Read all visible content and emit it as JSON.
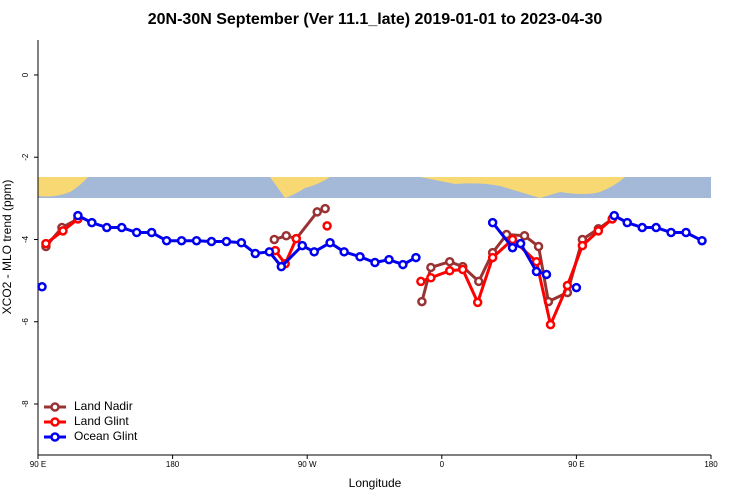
{
  "chart_data": {
    "type": "line",
    "title": "20N-30N September (Ver 11.1_late)   2019-01-01 to 2023-04-30",
    "x_label": "Longitude",
    "y_label": "XCO2 - MLO trend (ppm)",
    "xlim": [
      90,
      540
    ],
    "ylim": [
      -9.24,
      0.85
    ],
    "xticks": [
      {
        "value": 90,
        "label": "90 E"
      },
      180,
      {
        "value": 270,
        "label": "90 W"
      },
      {
        "value": 360,
        "label": "0"
      },
      {
        "value": 450,
        "label": "90 E"
      },
      {
        "value": 540,
        "label": "180"
      }
    ],
    "yticks": [
      -8,
      -6,
      -4,
      -2,
      0
    ],
    "legend": "bottom-left",
    "series": [
      {
        "name": "Land Nadir",
        "color": "#993333",
        "x": [
          95.3,
          106,
          116.7,
          180,
          248,
          256,
          262.7,
          276.7,
          282,
          300,
          346.7,
          352.7,
          365.3,
          374,
          384.7,
          394,
          403.3,
          415.3,
          424.7,
          431.3,
          444,
          454,
          464.7,
          474
        ],
        "values": [
          -4.17,
          -3.71,
          -3.5,
          null,
          -4.0,
          -3.91,
          -3.98,
          -3.33,
          -3.25,
          null,
          -5.51,
          -4.68,
          -4.54,
          -4.66,
          -5.02,
          -4.32,
          -3.88,
          -3.91,
          -4.17,
          -5.51,
          -5.29,
          -4.0,
          -3.74,
          -3.5
        ]
      },
      {
        "name": "Land Glint",
        "color": "#ff0000",
        "x": [
          95.3,
          106.7,
          116.7,
          180,
          248.7,
          255.3,
          262.7,
          270,
          283.3,
          300,
          346,
          352.7,
          365.3,
          374,
          384,
          394,
          407.3,
          423.3,
          432.7,
          444,
          454,
          464.7,
          474
        ],
        "values": [
          -4.1,
          -3.79,
          -3.5,
          null,
          -4.27,
          -4.59,
          -3.98,
          null,
          -3.67,
          null,
          -5.02,
          -4.93,
          -4.76,
          -4.73,
          -5.53,
          -4.44,
          -4.0,
          -4.54,
          -6.07,
          -5.12,
          -4.15,
          -3.79,
          -3.5
        ]
      },
      {
        "name": "Ocean Glint",
        "color": "#0000ee",
        "x": [
          92.7,
          100,
          116.7,
          126,
          136,
          146,
          156,
          166,
          176,
          186,
          196,
          206,
          216,
          226,
          235.3,
          244.7,
          252.7,
          266.7,
          274.7,
          285.3,
          294.7,
          305.3,
          315.3,
          324.7,
          334,
          342.7,
          370,
          394,
          407.3,
          412.7,
          423.3,
          430,
          440,
          450,
          460,
          475.3,
          484,
          494,
          503.3,
          513.3,
          523.3,
          534
        ],
        "values": [
          -5.15,
          null,
          -3.42,
          -3.59,
          -3.71,
          -3.71,
          -3.83,
          -3.83,
          -4.03,
          -4.03,
          -4.03,
          -4.05,
          -4.05,
          -4.08,
          -4.34,
          -4.3,
          -4.66,
          -4.15,
          -4.3,
          -4.08,
          -4.3,
          -4.42,
          -4.56,
          -4.49,
          -4.61,
          -4.44,
          null,
          -3.59,
          -4.2,
          -4.1,
          -4.78,
          -4.85,
          null,
          -5.17,
          null,
          -3.42,
          -3.59,
          -3.71,
          -3.71,
          -3.83,
          -3.83,
          -4.03
        ]
      }
    ]
  }
}
